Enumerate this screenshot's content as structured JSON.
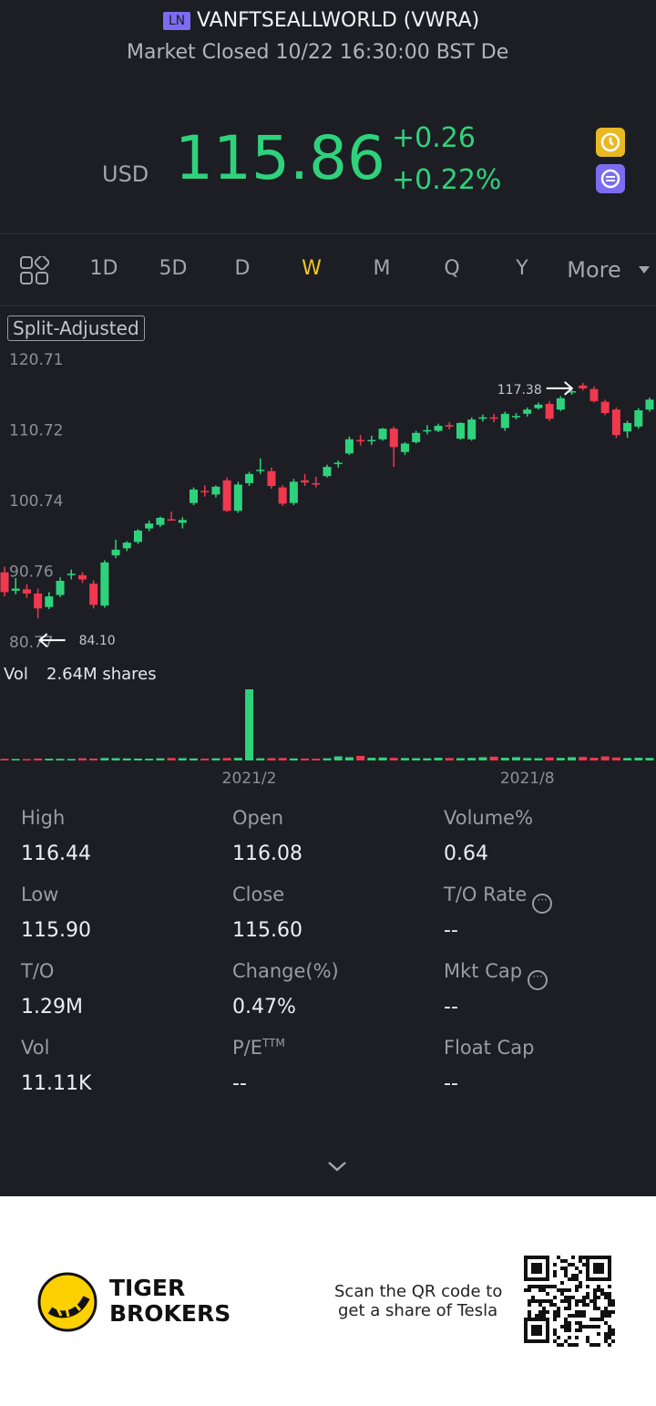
{
  "header": {
    "badge": "LN",
    "title": "VANFTSEALLWORLD (VWRA)",
    "status": "Market Closed 10/22 16:30:00 BST De"
  },
  "quote": {
    "currency": "USD",
    "price": "115.86",
    "change": "+0.26",
    "change_pct": "+0.22%"
  },
  "tabs": [
    "1D",
    "5D",
    "D",
    "W",
    "M",
    "Q",
    "Y",
    "More"
  ],
  "selected_tab": 3,
  "chart": {
    "type": "candlestick",
    "mode_label": "Split-Adjusted",
    "up_color": "#2fd27c",
    "down_color": "#f0384f",
    "grid": false,
    "ylim": [
      80.77,
      120.71
    ],
    "yticks": [
      120.71,
      110.72,
      100.74,
      90.76,
      80.77
    ],
    "max_label": "117.38",
    "min_label": "84.10",
    "volume_label": "Vol",
    "volume_value_label": "2.64M shares",
    "categories": [
      null,
      null,
      null,
      null,
      null,
      null,
      null,
      null,
      null,
      null,
      null,
      null,
      null,
      null,
      null,
      null,
      null,
      null,
      null,
      null,
      null,
      null,
      "2021/2",
      null,
      null,
      null,
      null,
      null,
      null,
      null,
      null,
      null,
      null,
      null,
      null,
      null,
      null,
      null,
      null,
      null,
      null,
      null,
      null,
      null,
      null,
      null,
      null,
      "2021/8",
      null,
      null,
      null,
      null,
      null,
      null,
      null,
      null,
      null,
      null,
      null
    ],
    "open": [
      90.6,
      88.0,
      88.2,
      87.6,
      85.7,
      87.4,
      90.2,
      90.2,
      89.0,
      85.9,
      93.0,
      94.0,
      94.9,
      96.8,
      97.3,
      98.1,
      97.6,
      100.4,
      102.1,
      101.6,
      103.6,
      99.3,
      103.2,
      105.0,
      104.9,
      102.6,
      100.4,
      103.6,
      103.2,
      104.2,
      106.0,
      107.4,
      109.3,
      109.2,
      109.4,
      110.9,
      107.6,
      109.0,
      110.5,
      110.6,
      111.4,
      109.5,
      109.4,
      112.3,
      112.5,
      111.0,
      112.6,
      113.0,
      113.8,
      114.4,
      113.6,
      116.0,
      117.0,
      116.5,
      114.7,
      113.6,
      110.5,
      111.2,
      113.6
    ],
    "high": [
      91.4,
      89.8,
      88.9,
      88.3,
      87.8,
      89.9,
      91.0,
      90.6,
      89.5,
      92.3,
      95.2,
      95.0,
      96.7,
      97.9,
      98.5,
      99.2,
      98.4,
      102.6,
      102.9,
      102.9,
      104.0,
      103.4,
      104.8,
      106.7,
      105.4,
      102.9,
      103.8,
      104.5,
      104.1,
      105.8,
      106.4,
      109.8,
      110.0,
      109.9,
      111.0,
      111.2,
      109.0,
      110.6,
      111.4,
      111.6,
      111.8,
      111.8,
      112.5,
      112.9,
      113.0,
      113.3,
      113.1,
      113.9,
      114.6,
      114.8,
      115.5,
      116.6,
      117.38,
      116.9,
      115.0,
      113.9,
      112.0,
      113.8,
      115.3
    ],
    "low": [
      87.2,
      87.5,
      87.0,
      84.1,
      85.4,
      87.1,
      89.6,
      89.1,
      85.5,
      85.6,
      92.6,
      93.6,
      94.6,
      96.4,
      97.0,
      97.9,
      96.8,
      100.1,
      101.3,
      101.2,
      99.1,
      99.0,
      102.8,
      104.5,
      102.4,
      100.0,
      100.1,
      102.8,
      102.6,
      104.0,
      105.4,
      107.2,
      108.5,
      108.6,
      109.2,
      105.5,
      107.2,
      108.8,
      110.1,
      110.4,
      110.8,
      109.3,
      109.2,
      111.9,
      111.8,
      110.6,
      112.2,
      112.6,
      113.6,
      112.0,
      113.4,
      115.7,
      116.3,
      114.6,
      112.8,
      109.6,
      109.6,
      110.9,
      113.3
    ],
    "close": [
      87.8,
      88.3,
      87.6,
      85.5,
      87.2,
      89.4,
      90.4,
      89.6,
      86.0,
      92.0,
      93.8,
      94.8,
      96.5,
      97.5,
      98.3,
      98.0,
      98.0,
      102.3,
      102.0,
      102.7,
      99.3,
      103.0,
      104.5,
      105.1,
      102.8,
      100.3,
      103.4,
      103.3,
      103.0,
      105.5,
      106.1,
      109.4,
      109.1,
      109.3,
      110.9,
      108.3,
      108.8,
      110.3,
      110.7,
      111.3,
      111.2,
      111.7,
      112.2,
      112.5,
      112.3,
      113.0,
      112.7,
      113.6,
      114.3,
      112.3,
      115.2,
      116.2,
      116.6,
      114.8,
      113.1,
      110.0,
      111.7,
      113.5,
      115.0
    ],
    "volume": [
      60000,
      55000,
      50000,
      70000,
      65000,
      60000,
      55000,
      80000,
      70000,
      90000,
      85000,
      75000,
      70000,
      65000,
      80000,
      90000,
      85000,
      75000,
      70000,
      80000,
      90000,
      95000,
      2640000,
      80000,
      85000,
      90000,
      75000,
      70000,
      65000,
      80000,
      150000,
      120000,
      170000,
      100000,
      110000,
      95000,
      90000,
      85000,
      80000,
      100000,
      90000,
      85000,
      95000,
      120000,
      140000,
      100000,
      120000,
      90000,
      85000,
      110000,
      95000,
      120000,
      130000,
      100000,
      150000,
      110000,
      90000,
      100000,
      95000
    ]
  },
  "stats": [
    {
      "label": "High",
      "value": "116.44"
    },
    {
      "label": "Open",
      "value": "116.08"
    },
    {
      "label": "Volume%",
      "value": "0.64"
    },
    {
      "label": "Low",
      "value": "115.90"
    },
    {
      "label": "Close",
      "value": "115.60"
    },
    {
      "label": "T/O Rate",
      "value": "--",
      "info": true
    },
    {
      "label": "T/O",
      "value": "1.29M"
    },
    {
      "label": "Change(%)",
      "value": "0.47%"
    },
    {
      "label": "Mkt Cap",
      "value": "--",
      "info": true
    },
    {
      "label": "Vol",
      "value": "11.11K"
    },
    {
      "label": "P/E",
      "label_sup": "TTM",
      "value": "--"
    },
    {
      "label": "Float Cap",
      "value": "--"
    }
  ],
  "footer": {
    "brand": [
      "TIGER",
      "BROKERS"
    ],
    "promo": [
      "Scan the QR code to",
      "get a share of Tesla"
    ]
  }
}
